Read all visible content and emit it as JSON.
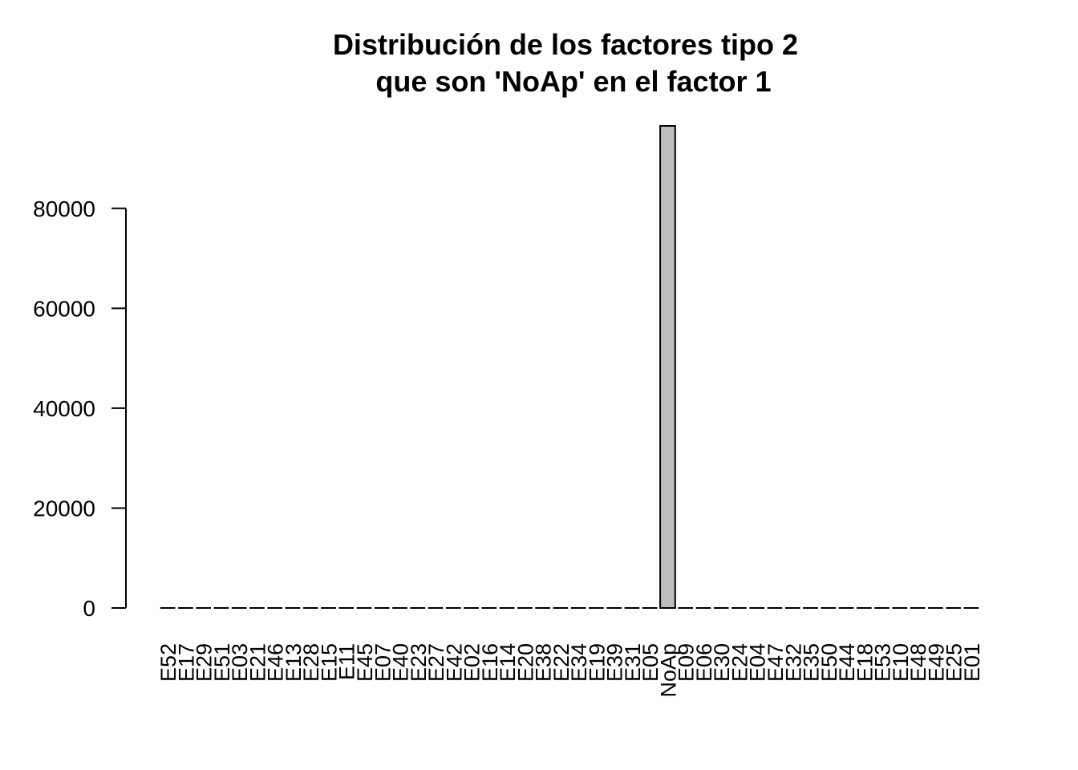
{
  "chart_data": {
    "type": "bar",
    "title": "Distribución de los factores tipo 2",
    "subtitle": "que son 'NoAp' en el factor 1",
    "xlabel": "",
    "ylabel": "",
    "ylim": [
      0,
      96500
    ],
    "yticks": [
      0,
      20000,
      40000,
      60000,
      80000
    ],
    "ytick_labels": [
      "0",
      "20000",
      "40000",
      "60000",
      "80000"
    ],
    "bar_color": "#bebebe",
    "bar_border": "#000000",
    "grid": false,
    "legend": "none",
    "categories": [
      "E52",
      "E17",
      "E29",
      "E51",
      "E03",
      "E21",
      "E46",
      "E13",
      "E28",
      "E15",
      "E11",
      "E45",
      "E07",
      "E40",
      "E23",
      "E27",
      "E42",
      "E02",
      "E16",
      "E14",
      "E20",
      "E38",
      "E22",
      "E34",
      "E19",
      "E39",
      "E31",
      "E05",
      "NoAp",
      "E09",
      "E06",
      "E30",
      "E24",
      "E04",
      "E47",
      "E32",
      "E35",
      "E50",
      "E44",
      "E18",
      "E53",
      "E10",
      "E48",
      "E49",
      "E25",
      "E01"
    ],
    "values": [
      0,
      0,
      0,
      0,
      0,
      0,
      0,
      0,
      0,
      0,
      0,
      0,
      0,
      0,
      0,
      0,
      0,
      0,
      0,
      0,
      0,
      0,
      0,
      0,
      0,
      0,
      0,
      0,
      96500,
      0,
      0,
      0,
      0,
      0,
      0,
      0,
      0,
      0,
      0,
      0,
      0,
      0,
      0,
      0,
      0,
      0
    ]
  }
}
